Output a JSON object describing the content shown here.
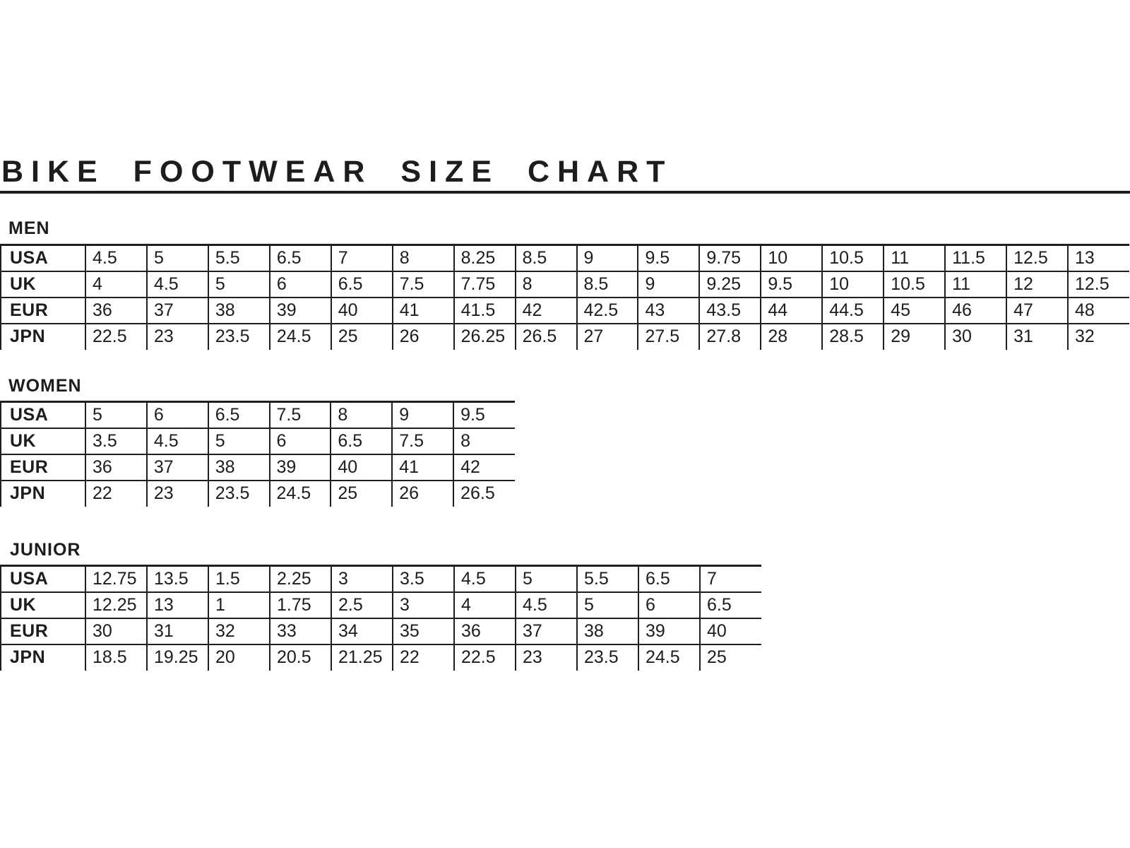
{
  "page": {
    "title": "BIKE FOOTWEAR SIZE CHART"
  },
  "colors": {
    "text": "#1d1d1d",
    "line": "#1f1f1f",
    "background": "#ffffff"
  },
  "sections": [
    {
      "label": "MEN",
      "rows": [
        {
          "label": "USA",
          "values": [
            "4.5",
            "5",
            "5.5",
            "6.5",
            "7",
            "8",
            "8.25",
            "8.5",
            "9",
            "9.5",
            "9.75",
            "10",
            "10.5",
            "11",
            "11.5",
            "12.5",
            "13"
          ]
        },
        {
          "label": "UK",
          "values": [
            "4",
            "4.5",
            "5",
            "6",
            "6.5",
            "7.5",
            "7.75",
            "8",
            "8.5",
            "9",
            "9.25",
            "9.5",
            "10",
            "10.5",
            "11",
            "12",
            "12.5"
          ]
        },
        {
          "label": "EUR",
          "values": [
            "36",
            "37",
            "38",
            "39",
            "40",
            "41",
            "41.5",
            "42",
            "42.5",
            "43",
            "43.5",
            "44",
            "44.5",
            "45",
            "46",
            "47",
            "48"
          ]
        },
        {
          "label": "JPN",
          "values": [
            "22.5",
            "23",
            "23.5",
            "24.5",
            "25",
            "26",
            "26.25",
            "26.5",
            "27",
            "27.5",
            "27.8",
            "28",
            "28.5",
            "29",
            "30",
            "31",
            "32"
          ]
        }
      ]
    },
    {
      "label": "WOMEN",
      "rows": [
        {
          "label": "USA",
          "values": [
            "5",
            "6",
            "6.5",
            "7.5",
            "8",
            "9",
            "9.5"
          ]
        },
        {
          "label": "UK",
          "values": [
            "3.5",
            "4.5",
            "5",
            "6",
            "6.5",
            "7.5",
            "8"
          ]
        },
        {
          "label": "EUR",
          "values": [
            "36",
            "37",
            "38",
            "39",
            "40",
            "41",
            "42"
          ]
        },
        {
          "label": "JPN",
          "values": [
            "22",
            "23",
            "23.5",
            "24.5",
            "25",
            "26",
            "26.5"
          ]
        }
      ]
    },
    {
      "label": "JUNIOR",
      "rows": [
        {
          "label": "USA",
          "values": [
            "12.75",
            "13.5",
            "1.5",
            "2.25",
            "3",
            "3.5",
            "4.5",
            "5",
            "5.5",
            "6.5",
            "7"
          ]
        },
        {
          "label": "UK",
          "values": [
            "12.25",
            "13",
            "1",
            "1.75",
            "2.5",
            "3",
            "4",
            "4.5",
            "5",
            "6",
            "6.5"
          ]
        },
        {
          "label": "EUR",
          "values": [
            "30",
            "31",
            "32",
            "33",
            "34",
            "35",
            "36",
            "37",
            "38",
            "39",
            "40"
          ]
        },
        {
          "label": "JPN",
          "values": [
            "18.5",
            "19.25",
            "20",
            "20.5",
            "21.25",
            "22",
            "22.5",
            "23",
            "23.5",
            "24.5",
            "25"
          ]
        }
      ]
    }
  ]
}
